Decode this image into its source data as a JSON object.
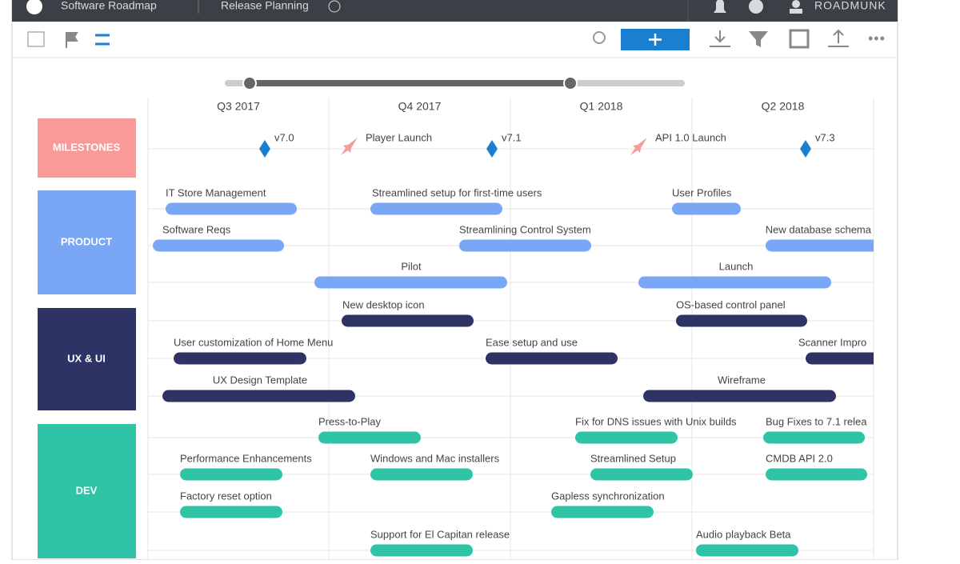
{
  "header": {
    "app_title": "Software Roadmap",
    "view_name": "Release Planning",
    "user": "ROADMUNK"
  },
  "timeline": {
    "quarters": [
      "Q3 2017",
      "Q4 2017",
      "Q1 2018",
      "Q2 2018"
    ]
  },
  "milestones": {
    "label": "MILESTONES",
    "items": [
      "v7.0",
      "Player Launch",
      "v7.1",
      "API 1.0 Launch",
      "v7.3"
    ]
  },
  "lanes": [
    {
      "label": "PRODUCT",
      "rows": [
        [
          "IT Store Management",
          "Streamlined setup for first-time users",
          "User Profiles"
        ],
        [
          "Software Reqs",
          "Streamlining Control System",
          "New database schema"
        ],
        [
          "Pilot",
          "Launch"
        ]
      ]
    },
    {
      "label": "UX & UI",
      "rows": [
        [
          "New desktop icon",
          "OS-based control panel"
        ],
        [
          "User customization of Home Menu",
          "Ease setup and use",
          "Scanner Impro"
        ],
        [
          "UX Design Template",
          "Wireframe"
        ]
      ]
    },
    {
      "label": "DEV",
      "rows": [
        [
          "Press-to-Play",
          "Fix for DNS issues with Unix builds",
          "Bug Fixes to 7.1 relea"
        ],
        [
          "Performance Enhancements",
          "Windows and Mac installers",
          "Streamlined Setup",
          "CMDB API 2.0"
        ],
        [
          "Factory reset option",
          "Gapless synchronization"
        ],
        [
          "Support for El Capitan release",
          "Audio playback Beta"
        ]
      ]
    }
  ]
}
